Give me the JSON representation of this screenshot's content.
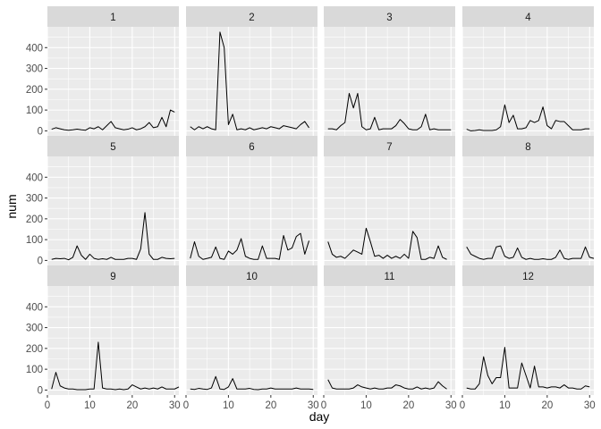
{
  "chart_data": {
    "type": "line",
    "facet_layout": {
      "rows": 3,
      "cols": 4
    },
    "xlabel": "day",
    "ylabel": "num",
    "xlim": [
      0,
      31
    ],
    "ylim": [
      -24,
      500
    ],
    "x_ticks": [
      0,
      10,
      20,
      30
    ],
    "y_ticks": [
      0,
      100,
      200,
      300,
      400
    ],
    "grid": true,
    "colors": {
      "panel_bg": "#ebebeb",
      "strip_bg": "#d9d9d9",
      "grid": "#ffffff",
      "line": "#000000"
    },
    "x": [
      1,
      2,
      3,
      4,
      5,
      6,
      7,
      8,
      9,
      10,
      11,
      12,
      13,
      14,
      15,
      16,
      17,
      18,
      19,
      20,
      21,
      22,
      23,
      24,
      25,
      26,
      27,
      28,
      29,
      30,
      31
    ],
    "panels": [
      {
        "label": "1",
        "values": [
          8,
          15,
          10,
          5,
          3,
          5,
          8,
          5,
          3,
          15,
          10,
          20,
          5,
          25,
          45,
          15,
          10,
          5,
          8,
          15,
          5,
          10,
          20,
          40,
          15,
          20,
          65,
          20,
          100,
          90
        ]
      },
      {
        "label": "2",
        "values": [
          20,
          5,
          20,
          10,
          20,
          10,
          5,
          475,
          400,
          30,
          80,
          5,
          10,
          5,
          15,
          5,
          10,
          15,
          10,
          20,
          15,
          10,
          25,
          20,
          15,
          10,
          30,
          45,
          15
        ]
      },
      {
        "label": "3",
        "values": [
          10,
          10,
          5,
          25,
          40,
          180,
          110,
          180,
          20,
          5,
          10,
          65,
          5,
          10,
          10,
          10,
          25,
          55,
          35,
          10,
          5,
          5,
          20,
          80,
          5,
          10,
          5,
          5,
          5,
          5
        ]
      },
      {
        "label": "4",
        "values": [
          8,
          0,
          2,
          5,
          2,
          2,
          2,
          5,
          20,
          125,
          40,
          75,
          10,
          10,
          15,
          50,
          40,
          50,
          115,
          25,
          10,
          50,
          45,
          45,
          25,
          5,
          5,
          5,
          10,
          10
        ]
      },
      {
        "label": "5",
        "values": [
          5,
          10,
          8,
          10,
          3,
          15,
          70,
          25,
          5,
          30,
          10,
          5,
          8,
          5,
          15,
          5,
          5,
          5,
          10,
          10,
          5,
          55,
          230,
          30,
          5,
          5,
          15,
          10,
          8,
          10
        ]
      },
      {
        "label": "6",
        "values": [
          10,
          90,
          20,
          5,
          10,
          15,
          65,
          10,
          5,
          45,
          30,
          50,
          105,
          20,
          10,
          5,
          5,
          70,
          10,
          10,
          10,
          5,
          120,
          50,
          60,
          115,
          130,
          30,
          95
        ]
      },
      {
        "label": "7",
        "values": [
          90,
          30,
          15,
          20,
          10,
          30,
          50,
          40,
          30,
          155,
          90,
          20,
          25,
          10,
          25,
          10,
          20,
          10,
          30,
          10,
          140,
          110,
          5,
          5,
          15,
          10,
          70,
          15,
          5
        ]
      },
      {
        "label": "8",
        "values": [
          65,
          30,
          20,
          10,
          5,
          10,
          10,
          65,
          70,
          20,
          10,
          15,
          60,
          15,
          5,
          10,
          5,
          5,
          8,
          5,
          5,
          15,
          50,
          10,
          5,
          10,
          10,
          10,
          65,
          15,
          10
        ]
      },
      {
        "label": "9",
        "values": [
          5,
          85,
          20,
          10,
          5,
          5,
          2,
          2,
          2,
          5,
          5,
          230,
          10,
          5,
          5,
          2,
          5,
          2,
          5,
          25,
          15,
          5,
          10,
          5,
          10,
          5,
          15,
          5,
          5,
          5,
          15
        ]
      },
      {
        "label": "10",
        "values": [
          5,
          3,
          8,
          5,
          3,
          10,
          65,
          5,
          3,
          15,
          55,
          5,
          5,
          5,
          8,
          3,
          2,
          5,
          5,
          10,
          5,
          5,
          5,
          5,
          5,
          10,
          5,
          5,
          5,
          3
        ]
      },
      {
        "label": "11",
        "values": [
          50,
          10,
          5,
          5,
          5,
          5,
          10,
          25,
          15,
          10,
          5,
          10,
          5,
          5,
          10,
          10,
          25,
          20,
          10,
          5,
          5,
          15,
          5,
          10,
          5,
          10,
          40,
          20,
          5
        ]
      },
      {
        "label": "12",
        "values": [
          10,
          5,
          5,
          30,
          160,
          70,
          30,
          60,
          60,
          205,
          10,
          10,
          10,
          130,
          70,
          10,
          115,
          15,
          15,
          10,
          15,
          15,
          10,
          25,
          10,
          10,
          5,
          5,
          20,
          15
        ]
      }
    ]
  }
}
